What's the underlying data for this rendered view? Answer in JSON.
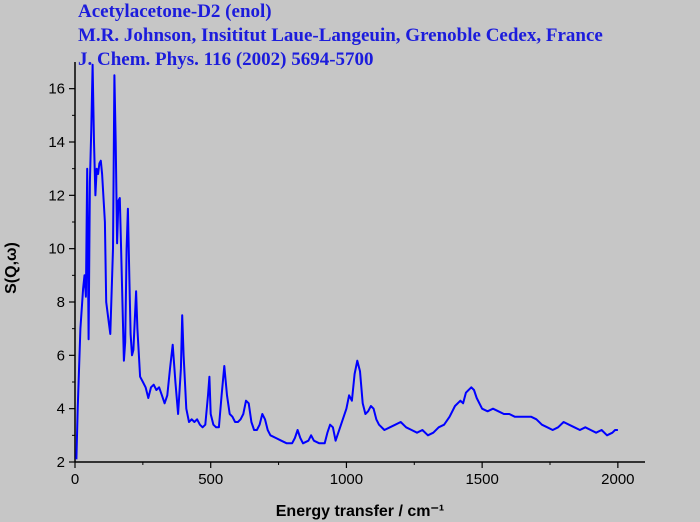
{
  "chart_data": {
    "type": "line",
    "title_lines": [
      "Acetylacetone-D2 (enol)",
      "M.R. Johnson, Insititut Laue-Langeuin, Grenoble Cedex, France",
      "J. Chem. Phys. 116 (2002) 5694-5700"
    ],
    "x_label": "Energy transfer / cm⁻¹",
    "y_label": "S(Q,ω)",
    "xlim": [
      0,
      2100
    ],
    "ylim": [
      2,
      17
    ],
    "xticks": [
      0,
      500,
      1000,
      1500,
      2000
    ],
    "yticks": [
      2,
      4,
      6,
      8,
      10,
      12,
      14,
      16
    ],
    "minor_ticks": true,
    "grid": false,
    "x": [
      5,
      10,
      20,
      30,
      35,
      40,
      45,
      50,
      55,
      60,
      65,
      70,
      75,
      80,
      85,
      90,
      95,
      100,
      110,
      115,
      125,
      130,
      140,
      145,
      150,
      155,
      160,
      165,
      170,
      180,
      185,
      190,
      195,
      200,
      205,
      210,
      215,
      225,
      230,
      240,
      250,
      260,
      270,
      280,
      290,
      300,
      310,
      320,
      330,
      340,
      350,
      360,
      370,
      380,
      390,
      395,
      400,
      410,
      420,
      430,
      440,
      450,
      460,
      470,
      480,
      490,
      495,
      500,
      510,
      520,
      530,
      540,
      550,
      560,
      570,
      580,
      590,
      600,
      610,
      620,
      630,
      640,
      650,
      660,
      670,
      680,
      690,
      700,
      710,
      720,
      740,
      760,
      780,
      800,
      810,
      820,
      830,
      840,
      860,
      870,
      880,
      900,
      920,
      930,
      940,
      950,
      960,
      980,
      1000,
      1010,
      1020,
      1030,
      1040,
      1050,
      1060,
      1070,
      1080,
      1090,
      1100,
      1110,
      1120,
      1140,
      1160,
      1180,
      1200,
      1220,
      1240,
      1260,
      1280,
      1300,
      1320,
      1340,
      1360,
      1380,
      1400,
      1420,
      1430,
      1440,
      1460,
      1470,
      1480,
      1500,
      1520,
      1540,
      1560,
      1580,
      1600,
      1620,
      1640,
      1660,
      1680,
      1700,
      1720,
      1740,
      1760,
      1780,
      1800,
      1820,
      1840,
      1860,
      1880,
      1900,
      1920,
      1940,
      1960,
      1980,
      1990,
      2000
    ],
    "series": [
      {
        "color": "#0000ff",
        "values": [
          2.1,
          4,
          7,
          8.5,
          9,
          8.2,
          13,
          6.6,
          12.5,
          14.5,
          16.9,
          14,
          12,
          13,
          12.8,
          13.2,
          13.3,
          12.8,
          11,
          8,
          7.2,
          6.8,
          10,
          16.5,
          14,
          10.2,
          11.8,
          11.9,
          10,
          5.8,
          6.5,
          10,
          11.5,
          9,
          6.8,
          6,
          6.2,
          8.4,
          7,
          5.2,
          5,
          4.8,
          4.4,
          4.8,
          4.9,
          4.7,
          4.8,
          4.5,
          4.2,
          4.5,
          5.5,
          6.4,
          5,
          3.8,
          5.5,
          7.5,
          6,
          4,
          3.5,
          3.6,
          3.5,
          3.6,
          3.4,
          3.3,
          3.4,
          4.5,
          5.2,
          3.8,
          3.4,
          3.3,
          3.3,
          4.5,
          5.6,
          4.5,
          3.8,
          3.7,
          3.5,
          3.5,
          3.6,
          3.8,
          4.3,
          4.2,
          3.5,
          3.2,
          3.2,
          3.4,
          3.8,
          3.6,
          3.2,
          3,
          2.9,
          2.8,
          2.7,
          2.7,
          2.9,
          3.2,
          2.9,
          2.7,
          2.8,
          3,
          2.8,
          2.7,
          2.7,
          3.1,
          3.4,
          3.3,
          2.8,
          3.4,
          4,
          4.5,
          4.3,
          5.3,
          5.8,
          5.4,
          4.2,
          3.8,
          3.9,
          4.1,
          4,
          3.6,
          3.4,
          3.2,
          3.3,
          3.4,
          3.5,
          3.3,
          3.2,
          3.1,
          3.2,
          3,
          3.1,
          3.3,
          3.4,
          3.7,
          4.1,
          4.3,
          4.2,
          4.6,
          4.8,
          4.7,
          4.4,
          4,
          3.9,
          4,
          3.9,
          3.8,
          3.8,
          3.7,
          3.7,
          3.7,
          3.7,
          3.6,
          3.4,
          3.3,
          3.2,
          3.3,
          3.5,
          3.4,
          3.3,
          3.2,
          3.3,
          3.2,
          3.1,
          3.2,
          3,
          3.1,
          3.2,
          3.2
        ]
      }
    ]
  }
}
